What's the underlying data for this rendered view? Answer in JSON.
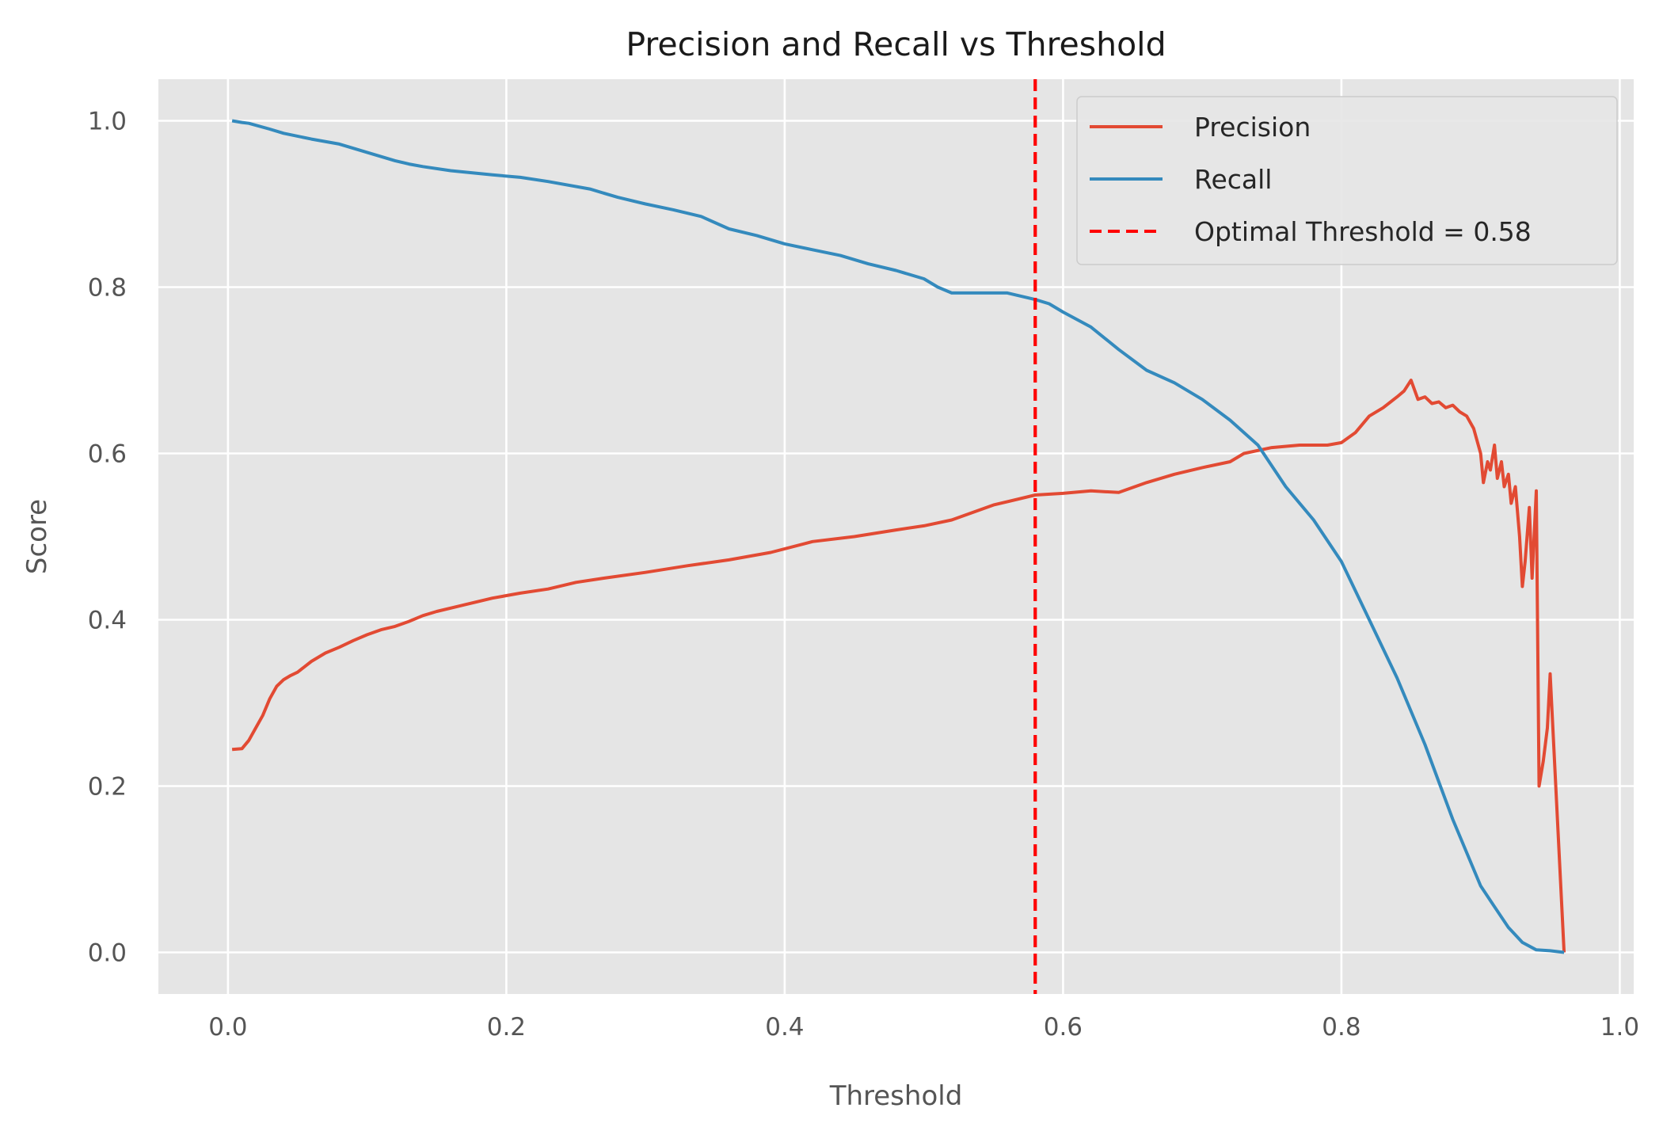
{
  "chart_data": {
    "type": "line",
    "title": "Precision and Recall vs Threshold",
    "xlabel": "Threshold",
    "ylabel": "Score",
    "xlim": [
      -0.05,
      1.01
    ],
    "ylim": [
      -0.05,
      1.05
    ],
    "xticks": [
      0.0,
      0.2,
      0.4,
      0.6,
      0.8,
      1.0
    ],
    "xtick_labels": [
      "0.0",
      "0.2",
      "0.4",
      "0.6",
      "0.8",
      "1.0"
    ],
    "yticks": [
      0.0,
      0.2,
      0.4,
      0.6,
      0.8,
      1.0
    ],
    "ytick_labels": [
      "0.0",
      "0.2",
      "0.4",
      "0.6",
      "0.8",
      "1.0"
    ],
    "grid": true,
    "background": "#e5e5e5",
    "legend_position": "top-right",
    "series": [
      {
        "name": "Precision",
        "color": "#e24a33",
        "x": [
          0.003,
          0.01,
          0.015,
          0.02,
          0.025,
          0.03,
          0.035,
          0.04,
          0.045,
          0.05,
          0.06,
          0.07,
          0.08,
          0.09,
          0.1,
          0.11,
          0.12,
          0.13,
          0.14,
          0.15,
          0.17,
          0.19,
          0.21,
          0.23,
          0.25,
          0.27,
          0.3,
          0.33,
          0.36,
          0.39,
          0.42,
          0.45,
          0.48,
          0.5,
          0.52,
          0.55,
          0.58,
          0.6,
          0.62,
          0.64,
          0.66,
          0.68,
          0.7,
          0.72,
          0.73,
          0.75,
          0.77,
          0.79,
          0.8,
          0.81,
          0.82,
          0.83,
          0.84,
          0.845,
          0.85,
          0.855,
          0.86,
          0.865,
          0.87,
          0.875,
          0.88,
          0.885,
          0.89,
          0.895,
          0.9,
          0.902,
          0.905,
          0.907,
          0.91,
          0.912,
          0.915,
          0.917,
          0.92,
          0.922,
          0.925,
          0.928,
          0.93,
          0.932,
          0.935,
          0.937,
          0.94,
          0.942,
          0.945,
          0.948,
          0.95,
          0.96
        ],
        "y": [
          0.244,
          0.245,
          0.255,
          0.27,
          0.285,
          0.305,
          0.32,
          0.328,
          0.333,
          0.337,
          0.35,
          0.36,
          0.367,
          0.375,
          0.382,
          0.388,
          0.392,
          0.398,
          0.405,
          0.41,
          0.418,
          0.426,
          0.432,
          0.437,
          0.445,
          0.45,
          0.457,
          0.465,
          0.472,
          0.481,
          0.494,
          0.5,
          0.508,
          0.513,
          0.52,
          0.538,
          0.55,
          0.552,
          0.555,
          0.553,
          0.565,
          0.575,
          0.583,
          0.59,
          0.6,
          0.607,
          0.61,
          0.61,
          0.613,
          0.625,
          0.645,
          0.655,
          0.668,
          0.675,
          0.688,
          0.665,
          0.668,
          0.66,
          0.662,
          0.655,
          0.658,
          0.65,
          0.645,
          0.63,
          0.6,
          0.565,
          0.59,
          0.58,
          0.61,
          0.57,
          0.59,
          0.56,
          0.575,
          0.54,
          0.56,
          0.5,
          0.44,
          0.47,
          0.535,
          0.45,
          0.555,
          0.2,
          0.23,
          0.27,
          0.335,
          0.0
        ]
      },
      {
        "name": "Recall",
        "color": "#348abd",
        "x": [
          0.003,
          0.01,
          0.015,
          0.03,
          0.04,
          0.06,
          0.08,
          0.09,
          0.1,
          0.11,
          0.12,
          0.13,
          0.14,
          0.16,
          0.19,
          0.21,
          0.23,
          0.26,
          0.28,
          0.3,
          0.32,
          0.34,
          0.36,
          0.38,
          0.4,
          0.42,
          0.44,
          0.46,
          0.48,
          0.5,
          0.51,
          0.52,
          0.54,
          0.56,
          0.58,
          0.59,
          0.6,
          0.62,
          0.64,
          0.66,
          0.68,
          0.7,
          0.72,
          0.74,
          0.76,
          0.78,
          0.8,
          0.82,
          0.84,
          0.86,
          0.88,
          0.9,
          0.91,
          0.92,
          0.93,
          0.94,
          0.95,
          0.96
        ],
        "y": [
          1.0,
          0.998,
          0.997,
          0.99,
          0.985,
          0.978,
          0.972,
          0.967,
          0.962,
          0.957,
          0.952,
          0.948,
          0.945,
          0.94,
          0.935,
          0.932,
          0.927,
          0.918,
          0.908,
          0.9,
          0.893,
          0.885,
          0.87,
          0.862,
          0.852,
          0.845,
          0.838,
          0.828,
          0.82,
          0.81,
          0.8,
          0.793,
          0.793,
          0.793,
          0.785,
          0.78,
          0.77,
          0.752,
          0.725,
          0.7,
          0.685,
          0.665,
          0.64,
          0.61,
          0.56,
          0.52,
          0.47,
          0.4,
          0.33,
          0.25,
          0.16,
          0.08,
          0.055,
          0.03,
          0.012,
          0.003,
          0.002,
          0.0
        ]
      }
    ],
    "annotations": [
      {
        "type": "vline",
        "x": 0.58,
        "label": "Optimal Threshold = 0.58",
        "color": "#ff0000",
        "style": "dashed"
      }
    ]
  }
}
